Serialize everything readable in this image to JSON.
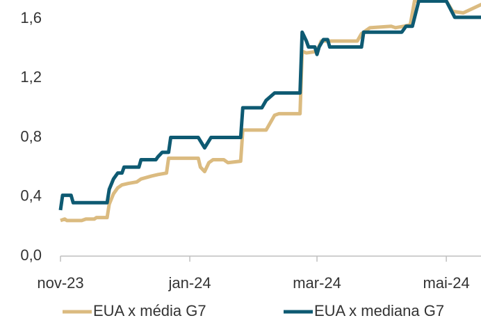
{
  "chart_data": {
    "type": "line",
    "xlim": [
      0,
      199
    ],
    "xticks": [
      {
        "value": 0,
        "label": "nov-23"
      },
      {
        "value": 61,
        "label": "jan-24"
      },
      {
        "value": 121,
        "label": "mar-24"
      },
      {
        "value": 182,
        "label": "mai-24"
      }
    ],
    "ylim": [
      0,
      1.72
    ],
    "yticks": [
      {
        "value": 0,
        "label": "0,0"
      },
      {
        "value": 0.4,
        "label": "0,4"
      },
      {
        "value": 0.8,
        "label": "0,8"
      },
      {
        "value": 1.2,
        "label": "1,2"
      },
      {
        "value": 1.6,
        "label": "1,6"
      }
    ],
    "legend": "bottom",
    "series": [
      {
        "name": "EUA x média G7",
        "color": "#dbbb80",
        "x": [
          0,
          2,
          3,
          10,
          12,
          16,
          17,
          22,
          23,
          25,
          27,
          29,
          32,
          36,
          38,
          43,
          46,
          50,
          51,
          65,
          66,
          68,
          70,
          72,
          77,
          79,
          85,
          86,
          97,
          99,
          101,
          103,
          113,
          114,
          116,
          121,
          123,
          140,
          142,
          146,
          156,
          158,
          162,
          165,
          167,
          182,
          185,
          190,
          199
        ],
        "values": [
          0.24,
          0.25,
          0.24,
          0.24,
          0.25,
          0.25,
          0.26,
          0.26,
          0.35,
          0.42,
          0.46,
          0.48,
          0.49,
          0.5,
          0.52,
          0.54,
          0.55,
          0.56,
          0.66,
          0.66,
          0.6,
          0.57,
          0.63,
          0.65,
          0.65,
          0.63,
          0.64,
          0.85,
          0.85,
          0.9,
          0.95,
          0.96,
          0.96,
          1.38,
          1.37,
          1.38,
          1.45,
          1.45,
          1.5,
          1.54,
          1.55,
          1.54,
          1.55,
          1.56,
          1.72,
          1.72,
          1.65,
          1.64,
          1.7
        ]
      },
      {
        "name": "EUA x mediana G7",
        "color": "#0e5a72",
        "x": [
          0,
          1,
          5,
          6,
          22,
          23,
          25,
          27,
          29,
          30,
          37,
          38,
          45,
          46,
          48,
          51,
          52,
          65,
          68,
          71,
          85,
          86,
          95,
          97,
          101,
          113,
          114,
          116,
          117,
          120,
          121,
          122,
          124,
          126,
          127,
          142,
          143,
          161,
          163,
          166,
          169,
          182,
          186,
          199
        ],
        "values": [
          0.31,
          0.41,
          0.41,
          0.36,
          0.36,
          0.45,
          0.52,
          0.56,
          0.56,
          0.6,
          0.6,
          0.65,
          0.65,
          0.67,
          0.7,
          0.7,
          0.8,
          0.8,
          0.73,
          0.8,
          0.8,
          1.0,
          1.0,
          1.05,
          1.1,
          1.1,
          1.51,
          1.45,
          1.41,
          1.41,
          1.36,
          1.41,
          1.46,
          1.46,
          1.41,
          1.41,
          1.51,
          1.51,
          1.55,
          1.55,
          1.72,
          1.72,
          1.61,
          1.61
        ]
      }
    ]
  }
}
